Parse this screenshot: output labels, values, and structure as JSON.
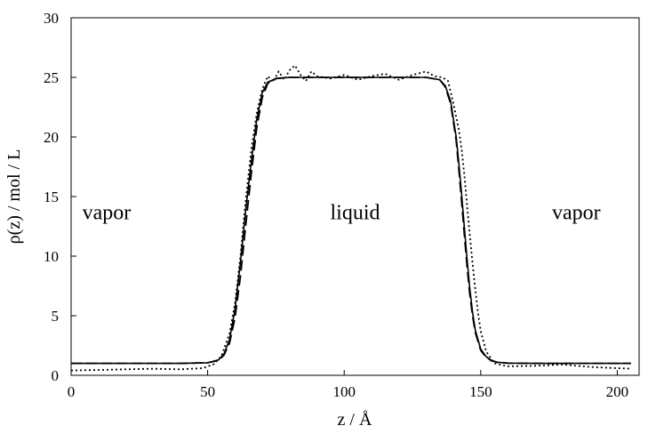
{
  "chart_data": {
    "type": "line",
    "title": "",
    "xlabel": "z / Å",
    "ylabel": "ρ(z) / mol / L",
    "xlim": [
      0,
      208
    ],
    "ylim": [
      0,
      30
    ],
    "xticks": [
      0,
      50,
      100,
      150,
      200
    ],
    "yticks": [
      0,
      5,
      10,
      15,
      20,
      25,
      30
    ],
    "grid": false,
    "legend": "none",
    "annotations": [
      {
        "text": "vapor",
        "x": 13,
        "y": 13.1
      },
      {
        "text": "liquid",
        "x": 104,
        "y": 13.1
      },
      {
        "text": "vapor",
        "x": 185,
        "y": 13.1
      }
    ],
    "series": [
      {
        "style": "solid",
        "color": "#000000",
        "x": [
          0,
          20,
          40,
          50,
          54,
          56,
          58,
          60,
          62,
          64,
          66,
          68,
          70,
          72,
          75,
          80,
          90,
          100,
          110,
          120,
          130,
          135,
          137,
          139,
          141,
          142,
          143,
          144,
          145,
          146,
          147,
          148,
          150,
          152,
          154,
          156,
          160,
          170,
          180,
          190,
          200,
          205
        ],
        "y": [
          1.0,
          1.0,
          1.0,
          1.05,
          1.3,
          1.8,
          3.0,
          5.5,
          9.5,
          14.0,
          18.0,
          21.5,
          23.7,
          24.6,
          24.9,
          25.0,
          25.0,
          25.0,
          25.0,
          25.0,
          25.0,
          24.8,
          24.3,
          23.0,
          20.0,
          17.8,
          15.2,
          12.4,
          9.7,
          7.3,
          5.3,
          3.8,
          2.2,
          1.55,
          1.25,
          1.1,
          1.02,
          1.0,
          1.0,
          1.0,
          1.0,
          1.0
        ]
      },
      {
        "style": "dashed",
        "color": "#000000",
        "x": [
          0,
          20,
          40,
          50,
          54,
          56,
          58,
          60,
          62,
          64,
          66,
          68,
          70,
          72,
          75,
          80,
          90,
          100,
          110,
          120,
          130,
          135,
          137,
          139,
          141,
          142,
          143,
          144,
          145,
          146,
          147,
          148,
          150,
          152,
          154,
          156,
          160,
          170,
          180,
          190,
          200,
          205
        ],
        "y": [
          1.0,
          1.0,
          1.0,
          1.05,
          1.25,
          1.7,
          2.7,
          4.8,
          8.3,
          12.7,
          17.0,
          20.8,
          23.3,
          24.5,
          24.9,
          25.0,
          25.0,
          25.0,
          25.0,
          25.0,
          25.0,
          24.8,
          24.2,
          22.8,
          19.7,
          17.3,
          14.6,
          11.8,
          9.1,
          6.8,
          5.0,
          3.6,
          2.1,
          1.5,
          1.22,
          1.1,
          1.02,
          1.0,
          1.0,
          1.0,
          1.0,
          1.0
        ]
      },
      {
        "style": "dotted",
        "color": "#000000",
        "x": [
          0,
          10,
          20,
          30,
          40,
          48,
          52,
          55,
          58,
          60,
          62,
          64,
          66,
          68,
          70,
          72,
          74,
          76,
          78,
          80,
          82,
          84,
          86,
          88,
          90,
          95,
          100,
          105,
          110,
          115,
          120,
          125,
          130,
          133,
          136,
          138,
          140,
          142,
          143,
          144,
          145,
          146,
          147,
          148,
          149,
          150,
          152,
          155,
          160,
          170,
          180,
          190,
          200,
          205
        ],
        "y": [
          0.4,
          0.45,
          0.5,
          0.55,
          0.5,
          0.6,
          0.9,
          1.6,
          3.5,
          6.0,
          10.0,
          14.8,
          19.0,
          22.0,
          24.0,
          25.1,
          24.6,
          25.5,
          24.8,
          25.6,
          26.0,
          25.2,
          24.7,
          25.5,
          25.1,
          24.9,
          25.2,
          24.8,
          25.1,
          25.3,
          24.8,
          25.2,
          25.5,
          25.1,
          25.0,
          24.7,
          22.8,
          20.6,
          19.0,
          16.8,
          14.2,
          11.8,
          9.4,
          7.2,
          5.3,
          3.7,
          2.0,
          1.0,
          0.75,
          0.8,
          0.9,
          0.7,
          0.6,
          0.55
        ]
      }
    ]
  }
}
